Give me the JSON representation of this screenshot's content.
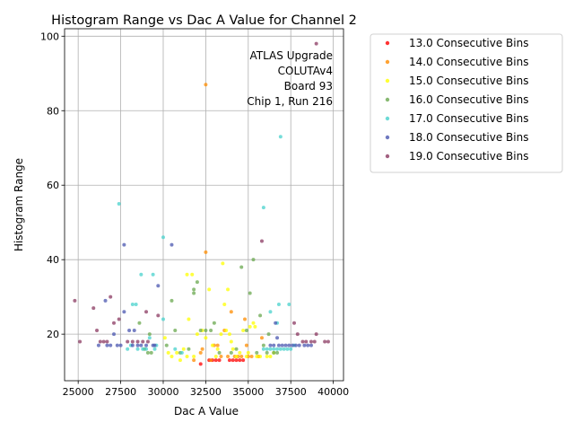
{
  "chart_data": {
    "type": "scatter",
    "title": "Histogram Range vs Dac A Value for Channel 2",
    "xlabel": "Dac A Value",
    "ylabel": "Histogram Range",
    "xlim": [
      24200,
      40600
    ],
    "ylim": [
      7.5,
      102
    ],
    "xticks": [
      25000,
      27500,
      30000,
      32500,
      35000,
      37500,
      40000
    ],
    "xtick_labels": [
      "25000",
      "27500",
      "30000",
      "32500",
      "35000",
      "37500",
      "40000"
    ],
    "yticks": [
      20,
      40,
      60,
      80,
      100
    ],
    "ytick_labels": [
      "20",
      "40",
      "60",
      "80",
      "100"
    ],
    "grid": true,
    "legend_position": "outside-right-top",
    "annotation": [
      "ATLAS Upgrade",
      "COLUTAv4",
      "Board 93",
      "Chip 1, Run 216"
    ],
    "series": [
      {
        "name": "13.0 Consecutive Bins",
        "color": "#ff0000",
        "points": [
          [
            32200,
            12
          ],
          [
            32700,
            13
          ],
          [
            32900,
            13
          ],
          [
            33100,
            13
          ],
          [
            33300,
            13
          ],
          [
            33900,
            13
          ],
          [
            34100,
            13
          ],
          [
            34300,
            13
          ],
          [
            34500,
            13
          ],
          [
            34700,
            13
          ]
        ]
      },
      {
        "name": "14.0 Consecutive Bins",
        "color": "#ff8c00",
        "points": [
          [
            31800,
            13
          ],
          [
            32200,
            15
          ],
          [
            32300,
            16
          ],
          [
            32500,
            87
          ],
          [
            32500,
            42
          ],
          [
            32800,
            13
          ],
          [
            33000,
            17
          ],
          [
            33200,
            17
          ],
          [
            33400,
            14
          ],
          [
            33600,
            21
          ],
          [
            33800,
            14
          ],
          [
            34000,
            26
          ],
          [
            34200,
            14
          ],
          [
            34400,
            14
          ],
          [
            34600,
            14
          ],
          [
            34800,
            24
          ],
          [
            35000,
            14
          ],
          [
            35200,
            14
          ],
          [
            35600,
            14
          ],
          [
            35800,
            19
          ],
          [
            34900,
            17
          ]
        ]
      },
      {
        "name": "15.0 Consecutive Bins",
        "color": "#ffff00",
        "points": [
          [
            30100,
            19
          ],
          [
            30300,
            15
          ],
          [
            30500,
            14
          ],
          [
            30800,
            15
          ],
          [
            31000,
            13
          ],
          [
            31200,
            16
          ],
          [
            31400,
            14
          ],
          [
            31400,
            36
          ],
          [
            31500,
            24
          ],
          [
            31700,
            36
          ],
          [
            31800,
            14
          ],
          [
            32000,
            20
          ],
          [
            32300,
            21
          ],
          [
            32500,
            19
          ],
          [
            32700,
            32
          ],
          [
            32900,
            17
          ],
          [
            33100,
            14
          ],
          [
            33200,
            16
          ],
          [
            33400,
            20
          ],
          [
            33500,
            39
          ],
          [
            33600,
            28
          ],
          [
            33700,
            21
          ],
          [
            33800,
            32
          ],
          [
            33900,
            20
          ],
          [
            34000,
            18
          ],
          [
            34100,
            16
          ],
          [
            34300,
            14
          ],
          [
            34500,
            15
          ],
          [
            34700,
            21
          ],
          [
            34900,
            14
          ],
          [
            35000,
            15
          ],
          [
            35100,
            22
          ],
          [
            35300,
            23
          ],
          [
            35400,
            22
          ],
          [
            35500,
            14
          ],
          [
            35700,
            14
          ],
          [
            36100,
            14
          ],
          [
            36300,
            14
          ],
          [
            36500,
            15
          ]
        ]
      },
      {
        "name": "16.0 Consecutive Bins",
        "color": "#6aa84f",
        "points": [
          [
            28600,
            23
          ],
          [
            28900,
            16
          ],
          [
            29100,
            15
          ],
          [
            29200,
            20
          ],
          [
            29300,
            15
          ],
          [
            30200,
            17
          ],
          [
            30500,
            29
          ],
          [
            30700,
            21
          ],
          [
            31000,
            15
          ],
          [
            31500,
            16
          ],
          [
            31800,
            32
          ],
          [
            31800,
            31
          ],
          [
            32000,
            34
          ],
          [
            32200,
            21
          ],
          [
            32500,
            21
          ],
          [
            32800,
            21
          ],
          [
            33000,
            23
          ],
          [
            33300,
            15
          ],
          [
            34000,
            15
          ],
          [
            34300,
            16
          ],
          [
            34600,
            38
          ],
          [
            34900,
            21
          ],
          [
            35100,
            31
          ],
          [
            35300,
            40
          ],
          [
            35500,
            15
          ],
          [
            35700,
            25
          ],
          [
            35900,
            17
          ],
          [
            36100,
            15
          ],
          [
            36200,
            20
          ],
          [
            36500,
            15
          ],
          [
            36700,
            15
          ]
        ]
      },
      {
        "name": "17.0 Consecutive Bins",
        "color": "#48d1cc",
        "points": [
          [
            27400,
            55
          ],
          [
            27900,
            16
          ],
          [
            28100,
            17
          ],
          [
            28200,
            28
          ],
          [
            28400,
            28
          ],
          [
            28500,
            16
          ],
          [
            28700,
            36
          ],
          [
            28800,
            16
          ],
          [
            29000,
            16
          ],
          [
            29200,
            19
          ],
          [
            29400,
            36
          ],
          [
            29500,
            16
          ],
          [
            29600,
            17
          ],
          [
            30000,
            46
          ],
          [
            30000,
            24
          ],
          [
            30700,
            16
          ],
          [
            31100,
            15
          ],
          [
            35900,
            54
          ],
          [
            36900,
            73
          ],
          [
            36700,
            23
          ],
          [
            36800,
            28
          ],
          [
            37400,
            28
          ],
          [
            36300,
            26
          ],
          [
            35900,
            16
          ],
          [
            36100,
            16
          ],
          [
            36300,
            16
          ],
          [
            36500,
            16
          ],
          [
            36700,
            16
          ],
          [
            36900,
            16
          ],
          [
            37100,
            16
          ],
          [
            37300,
            16
          ],
          [
            37500,
            16
          ],
          [
            37700,
            17
          ]
        ]
      },
      {
        "name": "18.0 Consecutive Bins",
        "color": "#4b57b0",
        "points": [
          [
            26200,
            17
          ],
          [
            26600,
            29
          ],
          [
            26700,
            17
          ],
          [
            26900,
            17
          ],
          [
            27100,
            20
          ],
          [
            27300,
            17
          ],
          [
            27500,
            17
          ],
          [
            27700,
            44
          ],
          [
            27700,
            26
          ],
          [
            28000,
            21
          ],
          [
            28200,
            17
          ],
          [
            28300,
            21
          ],
          [
            28500,
            17
          ],
          [
            28700,
            17
          ],
          [
            29000,
            17
          ],
          [
            29400,
            17
          ],
          [
            29500,
            17
          ],
          [
            29700,
            33
          ],
          [
            30500,
            44
          ],
          [
            36300,
            17
          ],
          [
            36500,
            17
          ],
          [
            36600,
            23
          ],
          [
            36700,
            19
          ],
          [
            36800,
            17
          ],
          [
            37000,
            17
          ],
          [
            37200,
            17
          ],
          [
            37400,
            17
          ],
          [
            37600,
            17
          ],
          [
            37800,
            17
          ],
          [
            38000,
            17
          ],
          [
            38300,
            17
          ],
          [
            38500,
            17
          ],
          [
            38700,
            17
          ]
        ]
      },
      {
        "name": "19.0 Consecutive Bins",
        "color": "#8b3a62",
        "points": [
          [
            24800,
            29
          ],
          [
            25100,
            18
          ],
          [
            25900,
            27
          ],
          [
            26100,
            21
          ],
          [
            26300,
            18
          ],
          [
            26500,
            18
          ],
          [
            26700,
            18
          ],
          [
            26900,
            30
          ],
          [
            27100,
            23
          ],
          [
            27400,
            24
          ],
          [
            27900,
            18
          ],
          [
            28200,
            18
          ],
          [
            28500,
            18
          ],
          [
            28800,
            18
          ],
          [
            29000,
            26
          ],
          [
            29100,
            18
          ],
          [
            29700,
            25
          ],
          [
            35800,
            45
          ],
          [
            37700,
            23
          ],
          [
            37900,
            20
          ],
          [
            38200,
            18
          ],
          [
            38400,
            18
          ],
          [
            38700,
            18
          ],
          [
            38900,
            18
          ],
          [
            39000,
            98
          ],
          [
            39000,
            20
          ],
          [
            39500,
            18
          ],
          [
            39700,
            18
          ]
        ]
      }
    ]
  }
}
